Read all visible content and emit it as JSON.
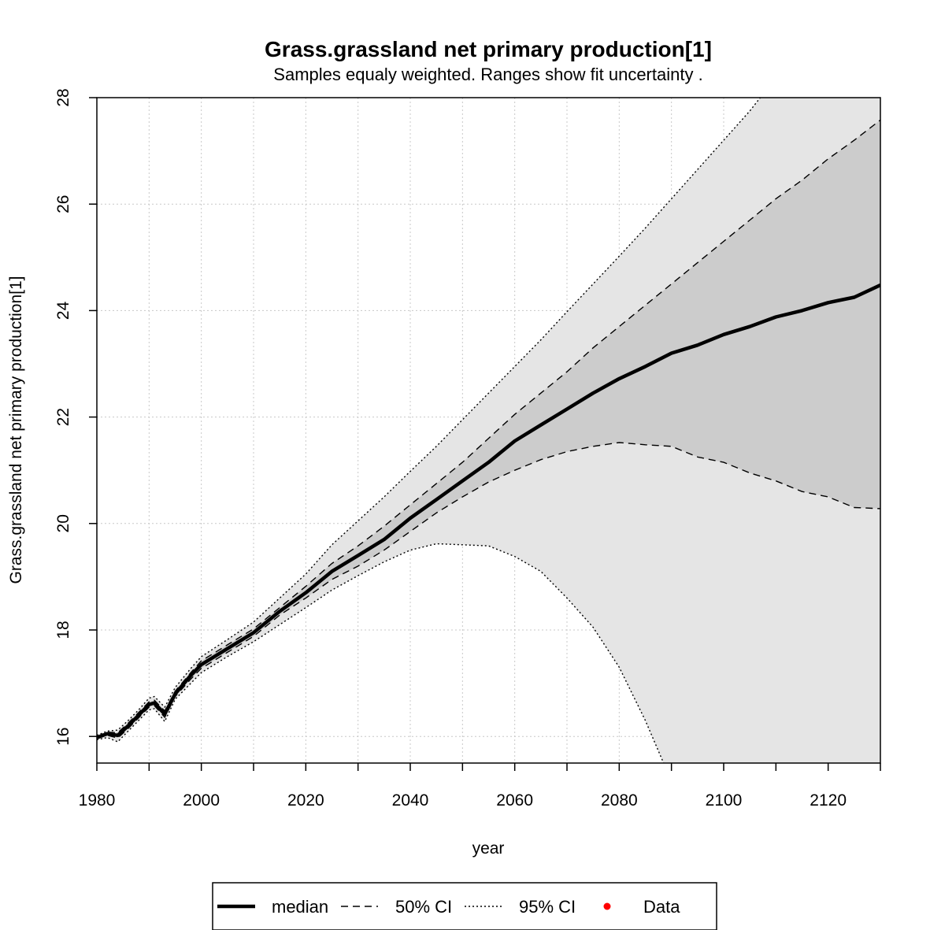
{
  "chart_data": {
    "type": "line",
    "title": "Grass.grassland net primary production[1]",
    "subtitle": "Samples equaly weighted. Ranges show  fit uncertainty .",
    "xlabel": "year",
    "ylabel": "Grass.grassland net primary production[1]",
    "xlim": [
      1980,
      2130
    ],
    "ylim": [
      15.5,
      28
    ],
    "x_ticks": [
      1980,
      2000,
      2020,
      2040,
      2060,
      2080,
      2100,
      2120
    ],
    "x_minor_ticks": [
      1990,
      2010,
      2030,
      2050,
      2070,
      2090,
      2110,
      2130
    ],
    "y_ticks": [
      16,
      18,
      20,
      22,
      24,
      26,
      28
    ],
    "grid": true,
    "legend_position": "bottom",
    "colors": {
      "ci95_fill": "#e5e5e5",
      "ci50_fill": "#cccccc",
      "median": "#000000",
      "data_point": "#ff0000",
      "grid": "#c8c8c8"
    },
    "legend": [
      {
        "label": "median",
        "style": "solid-thick"
      },
      {
        "label": "50% CI",
        "style": "dashed"
      },
      {
        "label": "95% CI",
        "style": "dotted"
      },
      {
        "label": "Data",
        "style": "point"
      }
    ],
    "series": [
      {
        "name": "median",
        "x": [
          1980,
          1982,
          1984,
          1986,
          1988,
          1990,
          1991,
          1993,
          1995,
          1998,
          2000,
          2005,
          2010,
          2015,
          2020,
          2025,
          2030,
          2035,
          2040,
          2045,
          2050,
          2055,
          2060,
          2065,
          2070,
          2075,
          2080,
          2085,
          2090,
          2095,
          2100,
          2105,
          2110,
          2115,
          2120,
          2125,
          2130
        ],
        "y": [
          15.98,
          16.05,
          16.02,
          16.2,
          16.4,
          16.6,
          16.63,
          16.42,
          16.8,
          17.15,
          17.35,
          17.65,
          17.95,
          18.35,
          18.7,
          19.1,
          19.4,
          19.7,
          20.1,
          20.45,
          20.8,
          21.15,
          21.55,
          21.85,
          22.15,
          22.45,
          22.72,
          22.95,
          23.2,
          23.35,
          23.55,
          23.7,
          23.88,
          24.0,
          24.15,
          24.25,
          24.48
        ]
      },
      {
        "name": "50% CI upper",
        "x": [
          1980,
          1982,
          1984,
          1986,
          1988,
          1990,
          1991,
          1993,
          1995,
          1998,
          2000,
          2005,
          2010,
          2015,
          2020,
          2025,
          2030,
          2035,
          2040,
          2045,
          2050,
          2055,
          2060,
          2065,
          2070,
          2075,
          2080,
          2085,
          2090,
          2095,
          2100,
          2105,
          2110,
          2115,
          2120,
          2125,
          2130
        ],
        "y": [
          16.0,
          16.08,
          16.07,
          16.25,
          16.45,
          16.65,
          16.68,
          16.48,
          16.85,
          17.2,
          17.42,
          17.72,
          18.02,
          18.42,
          18.82,
          19.25,
          19.58,
          19.95,
          20.35,
          20.75,
          21.15,
          21.6,
          22.05,
          22.45,
          22.85,
          23.3,
          23.7,
          24.1,
          24.5,
          24.9,
          25.3,
          25.7,
          26.1,
          26.45,
          26.85,
          27.2,
          27.58
        ]
      },
      {
        "name": "50% CI lower",
        "x": [
          1980,
          1982,
          1984,
          1986,
          1988,
          1990,
          1991,
          1993,
          1995,
          1998,
          2000,
          2005,
          2010,
          2015,
          2020,
          2025,
          2030,
          2035,
          2040,
          2045,
          2050,
          2055,
          2060,
          2065,
          2070,
          2075,
          2080,
          2085,
          2090,
          2095,
          2100,
          2105,
          2110,
          2115,
          2120,
          2125,
          2130
        ],
        "y": [
          15.96,
          16.02,
          15.97,
          16.15,
          16.35,
          16.55,
          16.58,
          16.36,
          16.75,
          17.08,
          17.28,
          17.58,
          17.88,
          18.28,
          18.6,
          18.95,
          19.2,
          19.5,
          19.85,
          20.2,
          20.5,
          20.78,
          21.0,
          21.2,
          21.35,
          21.45,
          21.52,
          21.48,
          21.45,
          21.25,
          21.15,
          20.95,
          20.8,
          20.6,
          20.5,
          20.3,
          20.28
        ]
      },
      {
        "name": "95% CI upper",
        "x": [
          1980,
          1982,
          1984,
          1986,
          1988,
          1990,
          1991,
          1993,
          1995,
          1998,
          2000,
          2005,
          2010,
          2015,
          2020,
          2025,
          2030,
          2035,
          2040,
          2045,
          2050,
          2055,
          2060,
          2065,
          2070,
          2075,
          2080,
          2085,
          2090,
          2095,
          2100,
          2105,
          2107
        ],
        "y": [
          16.02,
          16.1,
          16.12,
          16.3,
          16.5,
          16.72,
          16.75,
          16.55,
          16.92,
          17.28,
          17.5,
          17.82,
          18.15,
          18.6,
          19.05,
          19.6,
          20.05,
          20.5,
          20.98,
          21.45,
          21.95,
          22.45,
          22.95,
          23.45,
          23.98,
          24.5,
          25.02,
          25.55,
          26.1,
          26.65,
          27.2,
          27.75,
          28.0
        ]
      },
      {
        "name": "95% CI lower",
        "x": [
          1980,
          1982,
          1984,
          1986,
          1988,
          1990,
          1991,
          1993,
          1995,
          1998,
          2000,
          2005,
          2010,
          2015,
          2020,
          2025,
          2030,
          2035,
          2040,
          2045,
          2050,
          2055,
          2060,
          2065,
          2070,
          2075,
          2080,
          2085,
          2088.5
        ],
        "y": [
          15.94,
          15.98,
          15.9,
          16.1,
          16.3,
          16.5,
          16.52,
          16.28,
          16.7,
          17.0,
          17.2,
          17.5,
          17.78,
          18.1,
          18.42,
          18.75,
          19.02,
          19.28,
          19.5,
          19.62,
          19.6,
          19.58,
          19.38,
          19.1,
          18.6,
          18.05,
          17.3,
          16.3,
          15.5
        ]
      }
    ]
  }
}
